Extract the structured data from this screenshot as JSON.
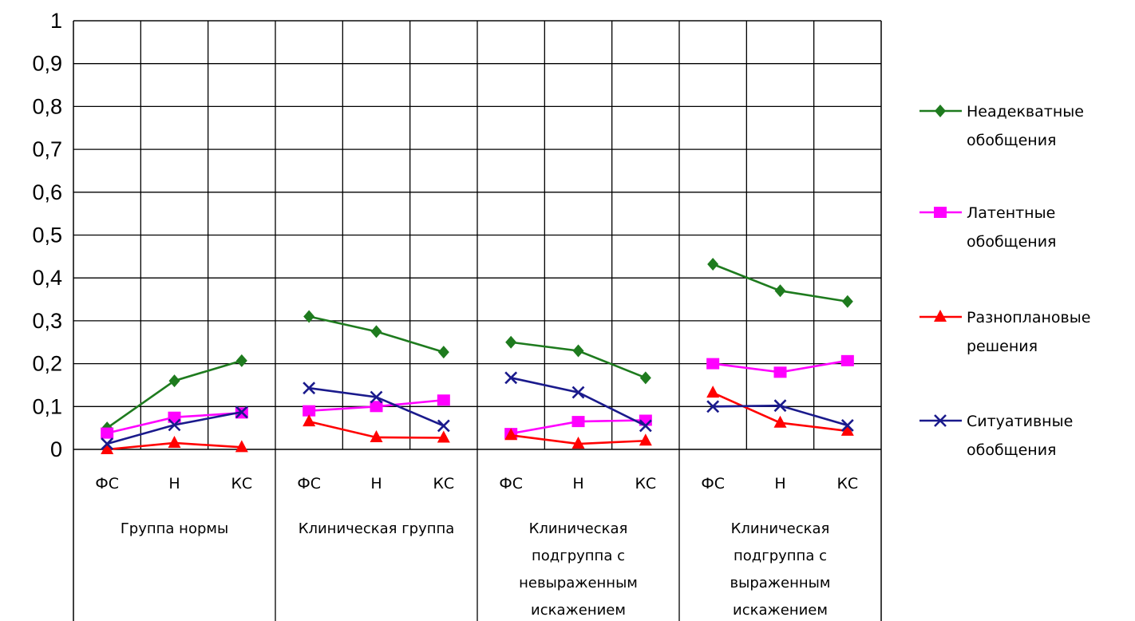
{
  "chart_data": {
    "type": "line",
    "ylim": [
      0,
      1
    ],
    "yticks": [
      "0",
      "0,1",
      "0,2",
      "0,3",
      "0,4",
      "0,5",
      "0,6",
      "0,7",
      "0,8",
      "0,9",
      "1"
    ],
    "grid": true,
    "legend_position": "right",
    "groups": [
      {
        "label_lines": [
          "Группа нормы"
        ],
        "categories": [
          "ФС",
          "Н",
          "КС"
        ]
      },
      {
        "label_lines": [
          "Клиническая группа"
        ],
        "categories": [
          "ФС",
          "Н",
          "КС"
        ]
      },
      {
        "label_lines": [
          "Клиническая",
          "подгруппа  с",
          "невыраженным",
          "искажением"
        ],
        "categories": [
          "ФС",
          "Н",
          "КС"
        ]
      },
      {
        "label_lines": [
          "Клиническая",
          "подгруппа с",
          "выраженным",
          "искажением"
        ],
        "categories": [
          "ФС",
          "Н",
          "КС"
        ]
      }
    ],
    "series": [
      {
        "name_lines": [
          "Неадекватные",
          "обобщения"
        ],
        "color": "#1e7b1e",
        "marker": "diamond",
        "values": [
          [
            0.05,
            0.16,
            0.207
          ],
          [
            0.31,
            0.275,
            0.227
          ],
          [
            0.25,
            0.23,
            0.167
          ],
          [
            0.432,
            0.37,
            0.345
          ]
        ]
      },
      {
        "name_lines": [
          "Латентные",
          "обобщения"
        ],
        "color": "#ff00ff",
        "marker": "square",
        "values": [
          [
            0.038,
            0.075,
            0.085
          ],
          [
            0.09,
            0.1,
            0.115
          ],
          [
            0.037,
            0.065,
            0.068
          ],
          [
            0.2,
            0.18,
            0.207
          ]
        ]
      },
      {
        "name_lines": [
          "Разноплановые",
          "решения"
        ],
        "color": "#ff0000",
        "marker": "triangle",
        "values": [
          [
            0.0,
            0.015,
            0.005
          ],
          [
            0.065,
            0.028,
            0.027
          ],
          [
            0.033,
            0.013,
            0.02
          ],
          [
            0.132,
            0.062,
            0.043
          ]
        ]
      },
      {
        "name_lines": [
          "Ситуативные",
          "обобщения"
        ],
        "color": "#1a1a8c",
        "marker": "x",
        "values": [
          [
            0.013,
            0.057,
            0.087
          ],
          [
            0.143,
            0.122,
            0.055
          ],
          [
            0.167,
            0.133,
            0.055
          ],
          [
            0.1,
            0.102,
            0.056
          ]
        ]
      }
    ]
  }
}
